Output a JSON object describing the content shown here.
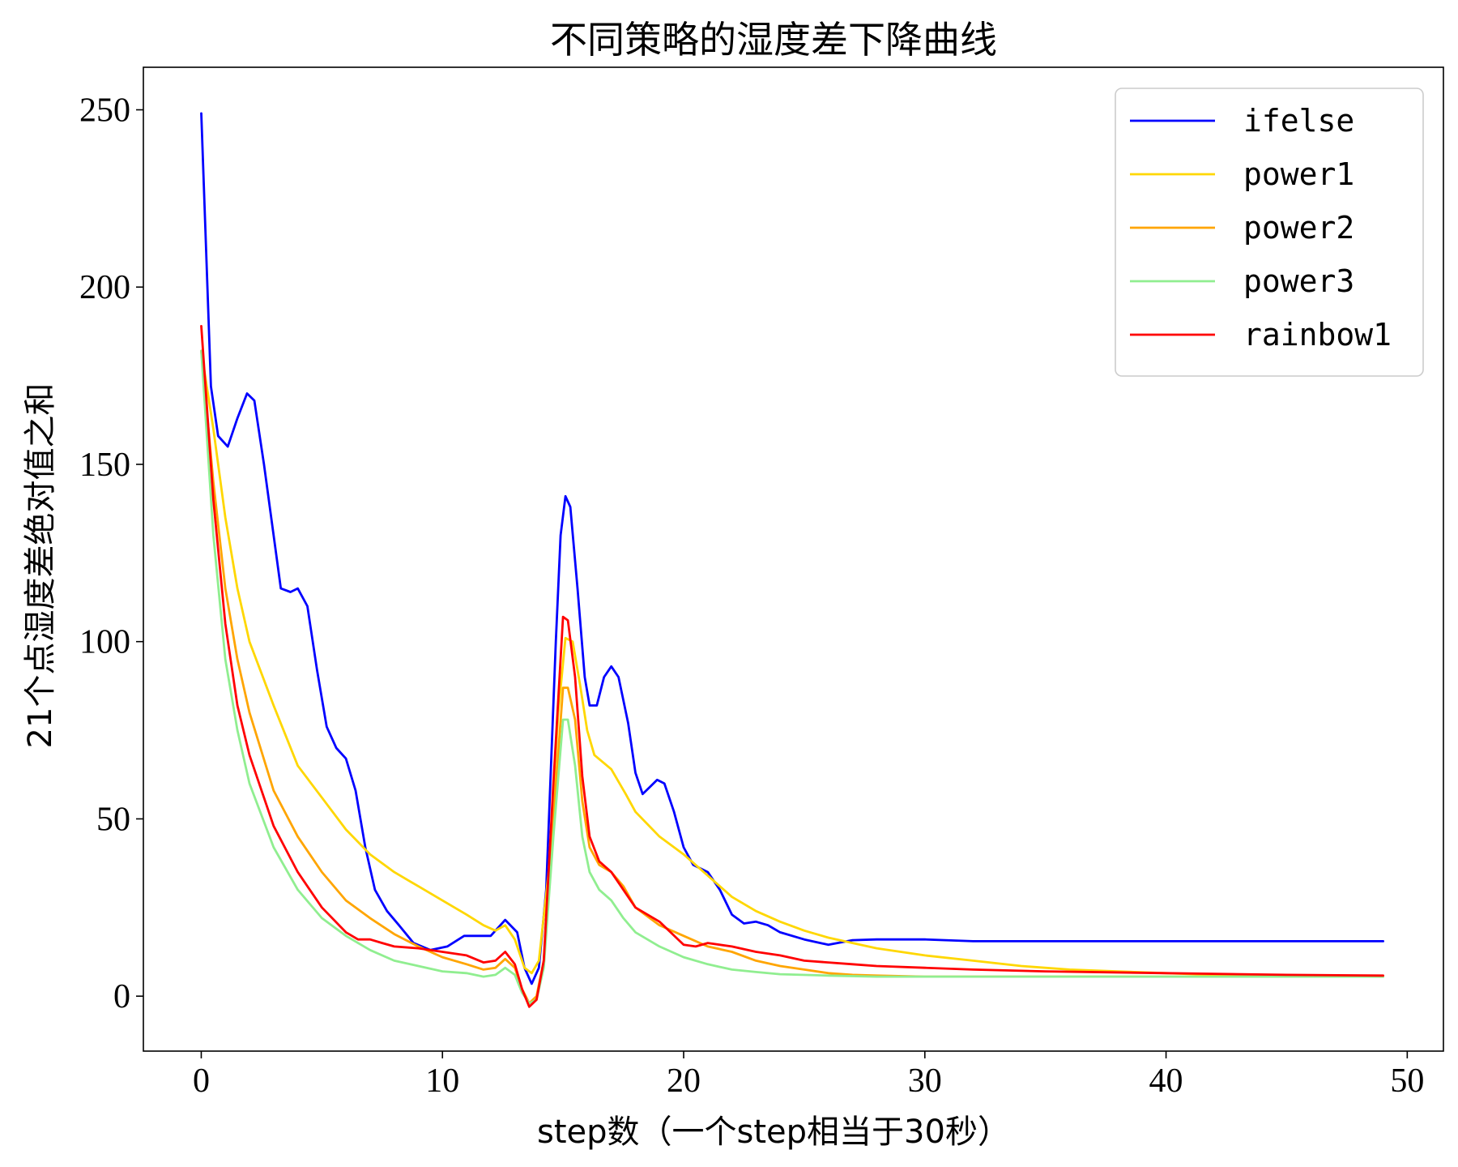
{
  "chart_data": {
    "type": "line",
    "title": "不同策略的湿度差下降曲线",
    "xlabel": "step数（一个step相当于30秒）",
    "ylabel": "21个点湿度差绝对值之和",
    "xlim": [
      -2.4,
      51.5
    ],
    "ylim": [
      -15.5,
      262
    ],
    "xticks": [
      0,
      10,
      20,
      30,
      40,
      50
    ],
    "yticks": [
      0,
      50,
      100,
      150,
      200,
      250
    ],
    "grid": false,
    "legend_position": "top-right",
    "series": [
      {
        "name": "ifelse",
        "color": "#0000ff",
        "points": [
          [
            0,
            249
          ],
          [
            0.4,
            172
          ],
          [
            0.7,
            158
          ],
          [
            1.1,
            155
          ],
          [
            1.5,
            163
          ],
          [
            1.9,
            170
          ],
          [
            2.2,
            168
          ],
          [
            2.6,
            150
          ],
          [
            3.0,
            130
          ],
          [
            3.3,
            115
          ],
          [
            3.7,
            114
          ],
          [
            4.0,
            115
          ],
          [
            4.4,
            110
          ],
          [
            4.8,
            92
          ],
          [
            5.2,
            76
          ],
          [
            5.6,
            70
          ],
          [
            6.0,
            67
          ],
          [
            6.4,
            58
          ],
          [
            6.8,
            42
          ],
          [
            7.2,
            30
          ],
          [
            7.7,
            24
          ],
          [
            8.2,
            20
          ],
          [
            8.8,
            15
          ],
          [
            9.5,
            13
          ],
          [
            10.2,
            14
          ],
          [
            10.9,
            17
          ],
          [
            11.5,
            17
          ],
          [
            12.0,
            17
          ],
          [
            12.6,
            21.5
          ],
          [
            13.1,
            18
          ],
          [
            13.4,
            8
          ],
          [
            13.7,
            3.5
          ],
          [
            14.0,
            8
          ],
          [
            14.3,
            30
          ],
          [
            14.7,
            100
          ],
          [
            14.9,
            130
          ],
          [
            15.1,
            141
          ],
          [
            15.3,
            138
          ],
          [
            15.6,
            115
          ],
          [
            15.9,
            90
          ],
          [
            16.1,
            82
          ],
          [
            16.4,
            82
          ],
          [
            16.7,
            90
          ],
          [
            17.0,
            93
          ],
          [
            17.3,
            90
          ],
          [
            17.7,
            77
          ],
          [
            18.0,
            63
          ],
          [
            18.3,
            57
          ],
          [
            18.6,
            59
          ],
          [
            18.9,
            61
          ],
          [
            19.2,
            60
          ],
          [
            19.6,
            52
          ],
          [
            20.0,
            42
          ],
          [
            20.4,
            37
          ],
          [
            21.0,
            35
          ],
          [
            21.5,
            30
          ],
          [
            22.0,
            23
          ],
          [
            22.5,
            20.5
          ],
          [
            23.0,
            21
          ],
          [
            23.5,
            20
          ],
          [
            24.0,
            18
          ],
          [
            25.0,
            16
          ],
          [
            26.0,
            14.5
          ],
          [
            27.0,
            15.8
          ],
          [
            28.0,
            16
          ],
          [
            30.0,
            16
          ],
          [
            32.0,
            15.5
          ],
          [
            34.0,
            15.5
          ],
          [
            36.0,
            15.5
          ],
          [
            38.0,
            15.5
          ],
          [
            40.0,
            15.5
          ],
          [
            42.0,
            15.5
          ],
          [
            44.0,
            15.5
          ],
          [
            46.0,
            15.5
          ],
          [
            49.0,
            15.5
          ]
        ]
      },
      {
        "name": "power1",
        "color": "#ffd700",
        "points": [
          [
            0,
            182
          ],
          [
            0.5,
            160
          ],
          [
            1.0,
            135
          ],
          [
            1.5,
            115
          ],
          [
            2.0,
            100
          ],
          [
            3.0,
            82
          ],
          [
            4.0,
            65
          ],
          [
            5.0,
            56
          ],
          [
            6.0,
            47
          ],
          [
            7.0,
            40
          ],
          [
            8.0,
            35
          ],
          [
            9.0,
            31
          ],
          [
            10.0,
            27
          ],
          [
            11.0,
            23
          ],
          [
            11.7,
            20
          ],
          [
            12.2,
            18.5
          ],
          [
            12.6,
            20
          ],
          [
            13.0,
            16
          ],
          [
            13.4,
            8
          ],
          [
            13.7,
            6.5
          ],
          [
            14.0,
            10
          ],
          [
            14.4,
            35
          ],
          [
            14.8,
            80
          ],
          [
            15.1,
            101
          ],
          [
            15.4,
            100
          ],
          [
            15.7,
            88
          ],
          [
            16.0,
            75
          ],
          [
            16.3,
            68
          ],
          [
            17.0,
            64
          ],
          [
            17.6,
            57
          ],
          [
            18.0,
            52
          ],
          [
            19.0,
            45
          ],
          [
            20.0,
            40
          ],
          [
            21.0,
            34
          ],
          [
            22.0,
            28
          ],
          [
            23.0,
            24
          ],
          [
            24.0,
            21
          ],
          [
            25.0,
            18.5
          ],
          [
            26.0,
            16.5
          ],
          [
            27.0,
            15
          ],
          [
            28.0,
            13.5
          ],
          [
            29.0,
            12.5
          ],
          [
            30.0,
            11.5
          ],
          [
            32.0,
            10
          ],
          [
            34.0,
            8.5
          ],
          [
            36.0,
            7.5
          ],
          [
            38.0,
            7
          ],
          [
            40.0,
            6.5
          ],
          [
            42.0,
            6
          ],
          [
            44.0,
            6
          ],
          [
            46.0,
            5.8
          ],
          [
            49.0,
            5.5
          ]
        ]
      },
      {
        "name": "power2",
        "color": "#ffa500",
        "points": [
          [
            0,
            182
          ],
          [
            0.5,
            145
          ],
          [
            1.0,
            115
          ],
          [
            1.5,
            95
          ],
          [
            2.0,
            80
          ],
          [
            3.0,
            58
          ],
          [
            4.0,
            45
          ],
          [
            5.0,
            35
          ],
          [
            6.0,
            27
          ],
          [
            7.0,
            22
          ],
          [
            8.0,
            17.5
          ],
          [
            9.0,
            14
          ],
          [
            10.0,
            11
          ],
          [
            11.0,
            9
          ],
          [
            11.7,
            7.5
          ],
          [
            12.2,
            8
          ],
          [
            12.6,
            10.5
          ],
          [
            13.0,
            8
          ],
          [
            13.3,
            2
          ],
          [
            13.6,
            -2
          ],
          [
            13.9,
            0
          ],
          [
            14.2,
            10
          ],
          [
            14.6,
            50
          ],
          [
            15.0,
            87
          ],
          [
            15.2,
            87
          ],
          [
            15.5,
            78
          ],
          [
            15.8,
            55
          ],
          [
            16.1,
            42
          ],
          [
            16.5,
            37
          ],
          [
            17.0,
            35
          ],
          [
            17.5,
            31
          ],
          [
            18.0,
            25
          ],
          [
            19.0,
            20
          ],
          [
            20.0,
            17
          ],
          [
            21.0,
            14
          ],
          [
            22.0,
            12.5
          ],
          [
            23.0,
            10
          ],
          [
            24.0,
            8.5
          ],
          [
            25.0,
            7.5
          ],
          [
            26.0,
            6.5
          ],
          [
            27.0,
            6
          ],
          [
            28.0,
            5.8
          ],
          [
            30.0,
            5.5
          ],
          [
            35.0,
            5.5
          ],
          [
            40.0,
            5.5
          ],
          [
            45.0,
            5.5
          ],
          [
            49.0,
            5.5
          ]
        ]
      },
      {
        "name": "power3",
        "color": "#90ee90",
        "points": [
          [
            0,
            182
          ],
          [
            0.5,
            130
          ],
          [
            1.0,
            95
          ],
          [
            1.5,
            75
          ],
          [
            2.0,
            60
          ],
          [
            3.0,
            42
          ],
          [
            4.0,
            30
          ],
          [
            5.0,
            22
          ],
          [
            6.0,
            17
          ],
          [
            7.0,
            13
          ],
          [
            8.0,
            10
          ],
          [
            9.0,
            8.5
          ],
          [
            10.0,
            7
          ],
          [
            11.0,
            6.5
          ],
          [
            11.7,
            5.5
          ],
          [
            12.2,
            6
          ],
          [
            12.6,
            8
          ],
          [
            13.0,
            6
          ],
          [
            13.3,
            1
          ],
          [
            13.6,
            -2
          ],
          [
            13.9,
            -1
          ],
          [
            14.2,
            8
          ],
          [
            14.6,
            45
          ],
          [
            15.0,
            78
          ],
          [
            15.2,
            78
          ],
          [
            15.5,
            65
          ],
          [
            15.8,
            45
          ],
          [
            16.1,
            35
          ],
          [
            16.5,
            30
          ],
          [
            17.0,
            27
          ],
          [
            17.5,
            22
          ],
          [
            18.0,
            18
          ],
          [
            19.0,
            14
          ],
          [
            20.0,
            11
          ],
          [
            21.0,
            9
          ],
          [
            22.0,
            7.5
          ],
          [
            23.0,
            6.8
          ],
          [
            24.0,
            6.2
          ],
          [
            26.0,
            5.8
          ],
          [
            28.0,
            5.5
          ],
          [
            30.0,
            5.5
          ],
          [
            35.0,
            5.5
          ],
          [
            40.0,
            5.5
          ],
          [
            45.0,
            5.5
          ],
          [
            49.0,
            5.5
          ]
        ]
      },
      {
        "name": "rainbow1",
        "color": "#ff0000",
        "points": [
          [
            0,
            189
          ],
          [
            0.5,
            140
          ],
          [
            1.0,
            105
          ],
          [
            1.5,
            82
          ],
          [
            2.0,
            68
          ],
          [
            3.0,
            48
          ],
          [
            4.0,
            35
          ],
          [
            5.0,
            25
          ],
          [
            6.0,
            18
          ],
          [
            6.5,
            16
          ],
          [
            7.0,
            16
          ],
          [
            7.5,
            15
          ],
          [
            8.0,
            14
          ],
          [
            9.0,
            13.5
          ],
          [
            10.0,
            12.5
          ],
          [
            11.0,
            11.5
          ],
          [
            11.7,
            9.5
          ],
          [
            12.2,
            10
          ],
          [
            12.6,
            12.5
          ],
          [
            13.0,
            9
          ],
          [
            13.3,
            2
          ],
          [
            13.6,
            -3
          ],
          [
            13.9,
            -1
          ],
          [
            14.2,
            10
          ],
          [
            14.6,
            60
          ],
          [
            15.0,
            107
          ],
          [
            15.2,
            106
          ],
          [
            15.5,
            90
          ],
          [
            15.8,
            62
          ],
          [
            16.1,
            45
          ],
          [
            16.5,
            38
          ],
          [
            17.0,
            35
          ],
          [
            17.5,
            30
          ],
          [
            18.0,
            25
          ],
          [
            19.0,
            21
          ],
          [
            20.0,
            14.5
          ],
          [
            20.5,
            14
          ],
          [
            21.0,
            15
          ],
          [
            22.0,
            14
          ],
          [
            23.0,
            12.5
          ],
          [
            24.0,
            11.5
          ],
          [
            25.0,
            10
          ],
          [
            26.0,
            9.5
          ],
          [
            27.0,
            9
          ],
          [
            28.0,
            8.5
          ],
          [
            30.0,
            8
          ],
          [
            32.0,
            7.5
          ],
          [
            35.0,
            7
          ],
          [
            40.0,
            6.5
          ],
          [
            45.0,
            6
          ],
          [
            49.0,
            5.8
          ]
        ]
      }
    ]
  }
}
